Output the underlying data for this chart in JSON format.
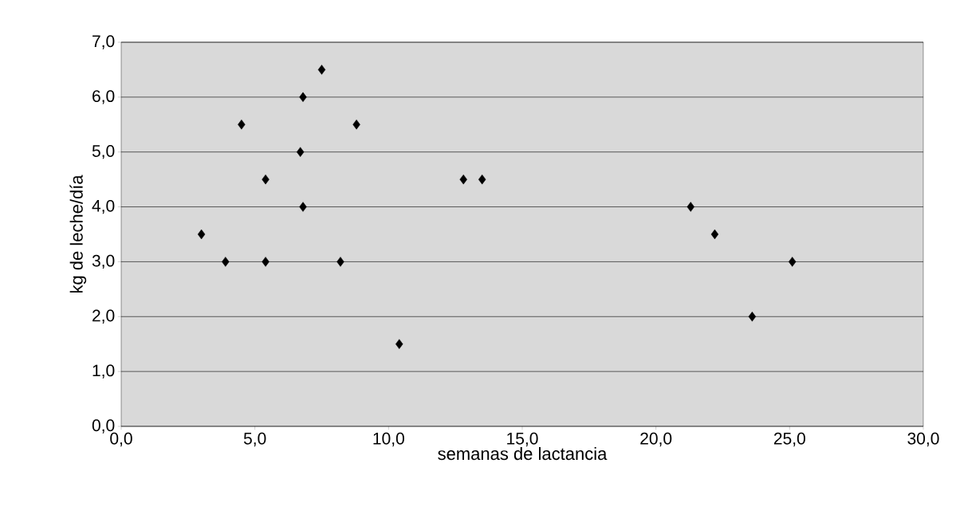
{
  "chart_data": {
    "type": "scatter",
    "xlabel": "semanas de lactancia",
    "ylabel": "kg de leche/día",
    "x": [
      3.0,
      3.9,
      4.5,
      5.4,
      5.4,
      6.7,
      6.8,
      6.8,
      7.5,
      8.2,
      8.8,
      10.4,
      12.8,
      13.5,
      21.3,
      22.2,
      23.6,
      25.1
    ],
    "values": [
      3.5,
      3.0,
      5.5,
      4.5,
      3.0,
      5.0,
      6.0,
      4.0,
      6.5,
      3.0,
      5.5,
      1.5,
      4.5,
      4.5,
      4.0,
      3.5,
      2.0,
      3.0
    ],
    "color": "#000000",
    "marker": "diamond",
    "grid": "y",
    "xlim": [
      0,
      30
    ],
    "ylim": [
      0,
      7
    ],
    "xticks": [
      {
        "value": 0,
        "label": "0,0"
      },
      {
        "value": 5,
        "label": "5,0"
      },
      {
        "value": 10,
        "label": "10,0"
      },
      {
        "value": 15,
        "label": "15,0"
      },
      {
        "value": 20,
        "label": "20,0"
      },
      {
        "value": 25,
        "label": "25,0"
      },
      {
        "value": 30,
        "label": "30,0"
      }
    ],
    "yticks": [
      {
        "value": 0,
        "label": "0,0"
      },
      {
        "value": 1,
        "label": "1,0"
      },
      {
        "value": 2,
        "label": "2,0"
      },
      {
        "value": 3,
        "label": "3,0"
      },
      {
        "value": 4,
        "label": "4,0"
      },
      {
        "value": 5,
        "label": "5,0"
      },
      {
        "value": 6,
        "label": "6,0"
      },
      {
        "value": 7,
        "label": "7,0"
      }
    ]
  }
}
